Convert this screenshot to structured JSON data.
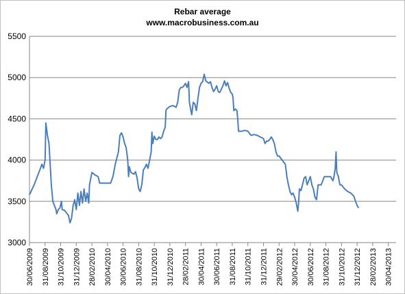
{
  "chart_data": {
    "type": "line",
    "title": "Rebar average",
    "subtitle": "www.macrobusiness.com.au",
    "xlabel": "",
    "ylabel": "",
    "ylim": [
      3000,
      5500
    ],
    "yticks": [
      3000,
      3500,
      4000,
      4500,
      5000,
      5500
    ],
    "xticks": [
      "30/06/2009",
      "31/08/2009",
      "31/10/2009",
      "31/12/2009",
      "28/02/2010",
      "30/04/2010",
      "30/06/2010",
      "31/08/2010",
      "31/10/2010",
      "31/12/2010",
      "28/02/2011",
      "30/04/2011",
      "30/06/2011",
      "31/08/2011",
      "31/10/2011",
      "31/12/2011",
      "29/02/2012",
      "30/04/2012",
      "30/06/2012",
      "31/08/2012",
      "31/10/2012",
      "31/12/2012",
      "28/02/2013",
      "30/04/2013"
    ],
    "grid": "horizontal",
    "legend": "none",
    "line_color": "#4a7ebb",
    "series": [
      {
        "values": [
          [
            0.0,
            3580
          ],
          [
            0.3,
            3700
          ],
          [
            0.6,
            3850
          ],
          [
            0.8,
            3950
          ],
          [
            0.9,
            3900
          ],
          [
            1.0,
            4000
          ],
          [
            1.05,
            4450
          ],
          [
            1.15,
            4300
          ],
          [
            1.25,
            4200
          ],
          [
            1.4,
            3700
          ],
          [
            1.5,
            3500
          ],
          [
            1.6,
            3450
          ],
          [
            1.7,
            3400
          ],
          [
            1.75,
            3350
          ],
          [
            1.85,
            3400
          ],
          [
            1.95,
            3420
          ],
          [
            2.05,
            3500
          ],
          [
            2.1,
            3400
          ],
          [
            2.25,
            3390
          ],
          [
            2.5,
            3330
          ],
          [
            2.6,
            3240
          ],
          [
            2.7,
            3300
          ],
          [
            2.8,
            3450
          ],
          [
            2.9,
            3520
          ],
          [
            3.0,
            3400
          ],
          [
            3.1,
            3600
          ],
          [
            3.2,
            3450
          ],
          [
            3.3,
            3620
          ],
          [
            3.4,
            3480
          ],
          [
            3.5,
            3650
          ],
          [
            3.6,
            3500
          ],
          [
            3.7,
            3600
          ],
          [
            3.8,
            3480
          ],
          [
            3.85,
            3700
          ],
          [
            4.0,
            3850
          ],
          [
            4.2,
            3820
          ],
          [
            4.4,
            3800
          ],
          [
            4.5,
            3720
          ],
          [
            4.8,
            3720
          ],
          [
            5.0,
            3720
          ],
          [
            5.2,
            3720
          ],
          [
            5.35,
            3800
          ],
          [
            5.5,
            3950
          ],
          [
            5.7,
            4100
          ],
          [
            5.8,
            4300
          ],
          [
            5.9,
            4330
          ],
          [
            6.0,
            4280
          ],
          [
            6.1,
            4200
          ],
          [
            6.2,
            4150
          ],
          [
            6.3,
            4000
          ],
          [
            6.35,
            3800
          ],
          [
            6.4,
            3920
          ],
          [
            6.5,
            3850
          ],
          [
            6.7,
            3830
          ],
          [
            6.8,
            3860
          ],
          [
            6.9,
            3780
          ],
          [
            7.0,
            3650
          ],
          [
            7.1,
            3620
          ],
          [
            7.2,
            3700
          ],
          [
            7.3,
            3880
          ],
          [
            7.4,
            3910
          ],
          [
            7.5,
            3950
          ],
          [
            7.6,
            3900
          ],
          [
            7.7,
            4000
          ],
          [
            7.8,
            4100
          ],
          [
            7.85,
            4340
          ],
          [
            7.9,
            4200
          ],
          [
            8.0,
            4290
          ],
          [
            8.1,
            4250
          ],
          [
            8.2,
            4250
          ],
          [
            8.3,
            4280
          ],
          [
            8.4,
            4260
          ],
          [
            8.5,
            4280
          ],
          [
            8.6,
            4350
          ],
          [
            8.7,
            4400
          ],
          [
            8.75,
            4600
          ],
          [
            8.8,
            4620
          ],
          [
            9.0,
            4650
          ],
          [
            9.2,
            4660
          ],
          [
            9.4,
            4640
          ],
          [
            9.5,
            4700
          ],
          [
            9.6,
            4850
          ],
          [
            9.7,
            4880
          ],
          [
            9.8,
            4880
          ],
          [
            9.9,
            4900
          ],
          [
            10.0,
            4930
          ],
          [
            10.1,
            4880
          ],
          [
            10.2,
            4950
          ],
          [
            10.25,
            4700
          ],
          [
            10.35,
            4600
          ],
          [
            10.4,
            4550
          ],
          [
            10.5,
            4700
          ],
          [
            10.6,
            4680
          ],
          [
            10.7,
            4600
          ],
          [
            10.8,
            4750
          ],
          [
            10.9,
            4880
          ],
          [
            11.0,
            4930
          ],
          [
            11.1,
            4950
          ],
          [
            11.2,
            5040
          ],
          [
            11.3,
            4960
          ],
          [
            11.5,
            4930
          ],
          [
            11.6,
            4950
          ],
          [
            11.7,
            4880
          ],
          [
            11.8,
            4830
          ],
          [
            11.9,
            4860
          ],
          [
            12.0,
            4900
          ],
          [
            12.1,
            4830
          ],
          [
            12.2,
            4820
          ],
          [
            12.3,
            4860
          ],
          [
            12.4,
            4900
          ],
          [
            12.5,
            4960
          ],
          [
            12.6,
            4900
          ],
          [
            12.7,
            4940
          ],
          [
            12.8,
            4870
          ],
          [
            12.9,
            4820
          ],
          [
            13.0,
            4800
          ],
          [
            13.05,
            4750
          ],
          [
            13.1,
            4600
          ],
          [
            13.2,
            4620
          ],
          [
            13.3,
            4600
          ],
          [
            13.35,
            4500
          ],
          [
            13.4,
            4350
          ],
          [
            13.6,
            4350
          ],
          [
            13.8,
            4360
          ],
          [
            14.0,
            4350
          ],
          [
            14.2,
            4300
          ],
          [
            14.4,
            4310
          ],
          [
            14.6,
            4300
          ],
          [
            14.8,
            4280
          ],
          [
            15.0,
            4260
          ],
          [
            15.1,
            4200
          ],
          [
            15.2,
            4230
          ],
          [
            15.3,
            4230
          ],
          [
            15.4,
            4250
          ],
          [
            15.5,
            4280
          ],
          [
            15.6,
            4250
          ],
          [
            15.7,
            4200
          ],
          [
            15.8,
            4100
          ],
          [
            15.9,
            4050
          ],
          [
            16.0,
            4050
          ],
          [
            16.2,
            4000
          ],
          [
            16.4,
            3950
          ],
          [
            16.5,
            3800
          ],
          [
            16.6,
            3700
          ],
          [
            16.7,
            3620
          ],
          [
            16.8,
            3580
          ],
          [
            16.9,
            3600
          ],
          [
            17.0,
            3550
          ],
          [
            17.1,
            3480
          ],
          [
            17.2,
            3380
          ],
          [
            17.25,
            3480
          ],
          [
            17.3,
            3650
          ],
          [
            17.4,
            3630
          ],
          [
            17.5,
            3700
          ],
          [
            17.6,
            3780
          ],
          [
            17.7,
            3800
          ],
          [
            17.8,
            3700
          ],
          [
            17.9,
            3750
          ],
          [
            18.0,
            3800
          ],
          [
            18.1,
            3700
          ],
          [
            18.2,
            3650
          ],
          [
            18.3,
            3550
          ],
          [
            18.4,
            3520
          ],
          [
            18.5,
            3700
          ],
          [
            18.7,
            3700
          ],
          [
            18.9,
            3800
          ],
          [
            19.1,
            3800
          ],
          [
            19.3,
            3800
          ],
          [
            19.45,
            3750
          ],
          [
            19.5,
            3780
          ],
          [
            19.6,
            3900
          ],
          [
            19.65,
            4100
          ],
          [
            19.7,
            3850
          ],
          [
            19.8,
            3800
          ],
          [
            19.9,
            3700
          ],
          [
            20.0,
            3700
          ],
          [
            20.2,
            3650
          ],
          [
            20.4,
            3620
          ],
          [
            20.6,
            3600
          ],
          [
            20.7,
            3580
          ],
          [
            20.8,
            3560
          ],
          [
            20.9,
            3500
          ],
          [
            21.0,
            3450
          ],
          [
            21.1,
            3420
          ]
        ]
      }
    ]
  }
}
